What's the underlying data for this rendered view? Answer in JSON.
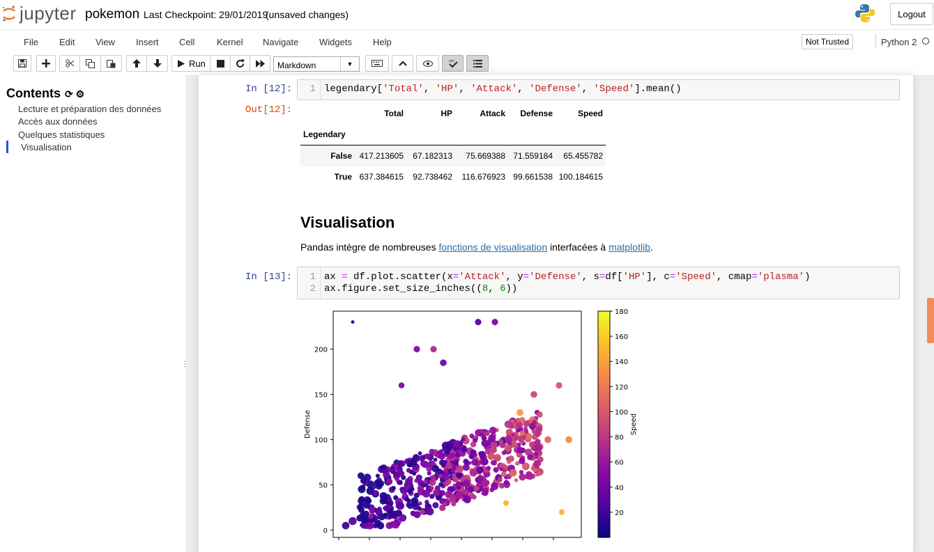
{
  "header": {
    "brand": "jupyter",
    "notebook_name": "pokemon",
    "checkpoint": "Last Checkpoint: 29/01/2019",
    "save_status": "(unsaved changes)",
    "logout_label": "Logout"
  },
  "menubar": {
    "items": [
      "File",
      "Edit",
      "View",
      "Insert",
      "Cell",
      "Kernel",
      "Navigate",
      "Widgets",
      "Help"
    ],
    "trust_label": "Not Trusted",
    "kernel_name": "Python 2"
  },
  "toolbar": {
    "run_label": "Run",
    "cell_type": "Markdown",
    "icons": [
      "save-icon",
      "plus-icon",
      "scissors-icon",
      "copy-icon",
      "paste-icon",
      "arrow-up-icon",
      "arrow-down-icon",
      "run-icon",
      "stop-icon",
      "restart-icon",
      "fast-forward-icon",
      "keyboard-icon",
      "chevron-up-icon",
      "eye-icon",
      "spellcheck-icon",
      "list-icon"
    ]
  },
  "toc": {
    "title": "Contents",
    "items": [
      "Lecture et préparation des données",
      "Accès aux données",
      "Quelques statistiques",
      "Visualisation"
    ],
    "active_index": 3
  },
  "cells": {
    "in12_prompt": "In [12]:",
    "out12_prompt": "Out[12]:",
    "in13_prompt": "In [13]:",
    "table": {
      "index_name": "Legendary",
      "columns": [
        "Total",
        "HP",
        "Attack",
        "Defense",
        "Speed"
      ],
      "rows": [
        {
          "index": "False",
          "values": [
            "417.213605",
            "67.182313",
            "75.669388",
            "71.559184",
            "65.455782"
          ]
        },
        {
          "index": "True",
          "values": [
            "637.384615",
            "92.738462",
            "116.676923",
            "99.661538",
            "100.184615"
          ]
        }
      ]
    },
    "heading": "Visualisation",
    "para_before": "Pandas intègre de nombreuses ",
    "para_link1": "fonctions de visualisation",
    "para_middle": " interfacées à ",
    "para_link2": "matplotlib",
    "para_after": "."
  },
  "chart_data": {
    "type": "scatter",
    "xlabel": "",
    "ylabel": "Defense",
    "colorbar_label": "Speed",
    "colormap": "plasma",
    "ylim": [
      -8,
      242
    ],
    "xlim": [
      0,
      170
    ],
    "yticks": [
      0,
      50,
      100,
      150,
      200
    ],
    "colorbar_range": [
      0,
      180
    ],
    "colorbar_ticks": [
      20,
      40,
      60,
      80,
      100,
      120,
      140,
      160,
      180
    ],
    "sample_points": [
      {
        "x": 5,
        "y": 5,
        "hp": 95,
        "speed": 20
      },
      {
        "x": 10,
        "y": 10,
        "hp": 110,
        "speed": 30
      },
      {
        "x": 10,
        "y": 230,
        "hp": 20,
        "speed": 5
      },
      {
        "x": 23,
        "y": 15,
        "hp": 50,
        "speed": 55
      },
      {
        "x": 35,
        "y": 25,
        "hp": 65,
        "speed": 30
      },
      {
        "x": 45,
        "y": 160,
        "hp": 60,
        "speed": 45
      },
      {
        "x": 56,
        "y": 200,
        "hp": 70,
        "speed": 50
      },
      {
        "x": 60,
        "y": 20,
        "hp": 50,
        "speed": 75
      },
      {
        "x": 68,
        "y": 200,
        "hp": 70,
        "speed": 70
      },
      {
        "x": 75,
        "y": 185,
        "hp": 75,
        "speed": 40
      },
      {
        "x": 100,
        "y": 230,
        "hp": 70,
        "speed": 30
      },
      {
        "x": 112,
        "y": 230,
        "hp": 70,
        "speed": 45
      },
      {
        "x": 120,
        "y": 30,
        "hp": 55,
        "speed": 150
      },
      {
        "x": 130,
        "y": 130,
        "hp": 80,
        "speed": 140
      },
      {
        "x": 140,
        "y": 150,
        "hp": 75,
        "speed": 90
      },
      {
        "x": 150,
        "y": 100,
        "hp": 80,
        "speed": 110
      },
      {
        "x": 158,
        "y": 160,
        "hp": 70,
        "speed": 100
      },
      {
        "x": 160,
        "y": 20,
        "hp": 55,
        "speed": 150
      },
      {
        "x": 165,
        "y": 100,
        "hp": 80,
        "speed": 130
      }
    ]
  }
}
